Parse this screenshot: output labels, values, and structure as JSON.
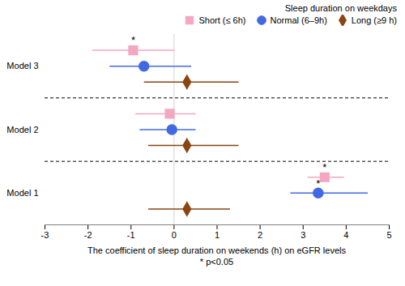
{
  "chart_data": {
    "type": "forest",
    "xlabel": "The coefficient of sleep duration on weekends (h) on eGFR levels\n* p<0.05",
    "xlim": [
      -3,
      5
    ],
    "xticks": [
      -3,
      -2,
      -1,
      0,
      1,
      2,
      3,
      4,
      5
    ],
    "annotation": "*",
    "legend": "upper right",
    "legend_title": "Sleep duration on weekdays",
    "series": [
      {
        "name": "Short (≤ 6h)",
        "color": "#f4a7c0",
        "marker": "square"
      },
      {
        "name": "Normal (6–9h)",
        "color": "#4169e1",
        "marker": "circle"
      },
      {
        "name": "Long (≥9 h)",
        "color": "#8B4513",
        "marker": "diamond"
      }
    ],
    "groups": [
      {
        "label": "Model 1",
        "items": [
          {
            "series": "Short (≤ 6h)",
            "x": 3.5,
            "xlo": 3.1,
            "xhi": 3.95,
            "starred": true
          },
          {
            "series": "Normal (6–9h)",
            "x": 3.35,
            "xlo": 2.7,
            "xhi": 4.5,
            "starred": true
          },
          {
            "series": "Long (≥9 h)",
            "x": 0.3,
            "xlo": -0.6,
            "xhi": 1.3,
            "starred": false
          }
        ]
      },
      {
        "label": "Model 2",
        "items": [
          {
            "series": "Short (≤ 6h)",
            "x": -0.1,
            "xlo": -0.9,
            "xhi": 0.5,
            "starred": false
          },
          {
            "series": "Normal (6–9h)",
            "x": -0.05,
            "xlo": -0.8,
            "xhi": 0.5,
            "starred": false
          },
          {
            "series": "Long (≥9 h)",
            "x": 0.3,
            "xlo": -0.6,
            "xhi": 1.5,
            "starred": false
          }
        ]
      },
      {
        "label": "Model 3",
        "items": [
          {
            "series": "Short (≤ 6h)",
            "x": -0.95,
            "xlo": -1.9,
            "xhi": 0.0,
            "starred": true
          },
          {
            "series": "Normal (6–9h)",
            "x": -0.7,
            "xlo": -1.5,
            "xhi": 0.4,
            "starred": false
          },
          {
            "series": "Long (≥9 h)",
            "x": 0.3,
            "xlo": -0.7,
            "xhi": 1.5,
            "starred": false
          }
        ]
      }
    ]
  }
}
